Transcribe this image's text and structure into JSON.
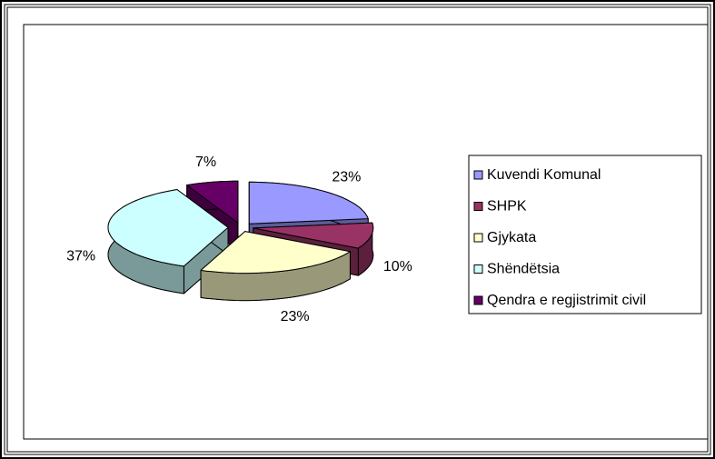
{
  "chart_data": {
    "type": "pie",
    "pie_style": "3d-exploded",
    "categories": [
      "Kuvendi Komunal",
      "SHPK",
      "Gjykata",
      "Shëndëtsia",
      "Qendra e regjistrimit civil"
    ],
    "values": [
      23,
      10,
      23,
      37,
      7
    ],
    "value_labels": [
      "23%",
      "10%",
      "23%",
      "37%",
      "7%"
    ],
    "colors": [
      "#9999ff",
      "#993366",
      "#ffffcc",
      "#ccffff",
      "#660066"
    ],
    "legend": "right"
  }
}
